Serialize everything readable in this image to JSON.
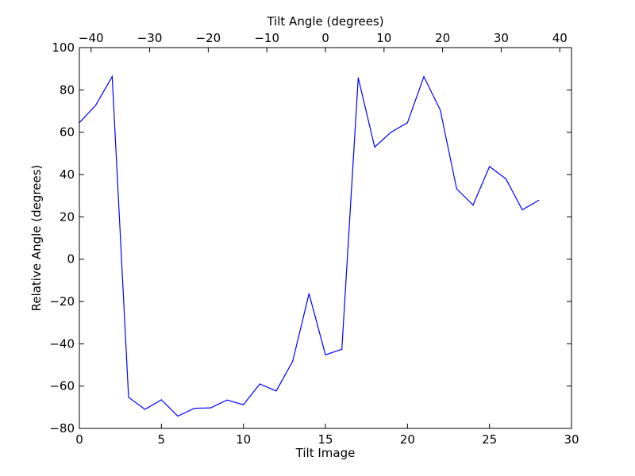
{
  "chart_data": {
    "type": "line",
    "title": "",
    "xlabel": "Tilt Image",
    "ylabel": "Relative Angle (degrees)",
    "x2label": "Tilt Angle (degrees)",
    "xlim": [
      0,
      30
    ],
    "ylim": [
      -80,
      100
    ],
    "x2lim": [
      -42,
      42
    ],
    "xticks": [
      0,
      5,
      10,
      15,
      20,
      25,
      30
    ],
    "yticks": [
      -80,
      -60,
      -40,
      -20,
      0,
      20,
      40,
      60,
      80,
      100
    ],
    "x2ticks": [
      -40,
      -30,
      -20,
      -10,
      0,
      10,
      20,
      30,
      40
    ],
    "xtick_labels": [
      "0",
      "5",
      "10",
      "15",
      "20",
      "25",
      "30"
    ],
    "ytick_labels": [
      "−80",
      "−60",
      "−40",
      "−20",
      "0",
      "20",
      "40",
      "60",
      "80",
      "100"
    ],
    "x2tick_labels": [
      "−40",
      "−30",
      "−20",
      "−10",
      "0",
      "10",
      "20",
      "30",
      "40"
    ],
    "grid": false,
    "line_color": "#0000ff",
    "series": [
      {
        "x": [
          0,
          1,
          2,
          3,
          4,
          5,
          6,
          7,
          8,
          9,
          10,
          11,
          12,
          13,
          14,
          15,
          16,
          17,
          18,
          19,
          20,
          21,
          22,
          23,
          24,
          25,
          26,
          27,
          28
        ],
        "values": [
          64.5,
          72.8,
          86.3,
          -65.3,
          -71,
          -66.5,
          -74.2,
          -70.5,
          -70.3,
          -66.6,
          -68.8,
          -59,
          -62.3,
          -48.3,
          -16.3,
          -45.2,
          -42.6,
          85.7,
          53,
          60,
          64.5,
          86.3,
          70.5,
          33.2,
          25.6,
          43.8,
          38,
          23.3,
          27.8
        ]
      }
    ]
  }
}
